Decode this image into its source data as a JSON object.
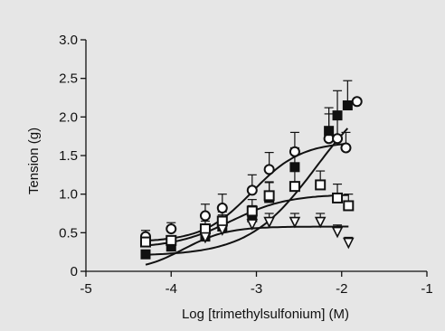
{
  "chart_data": {
    "type": "scatter",
    "title": "",
    "xlabel": "Log [trimethylsulfonium] (M)",
    "ylabel": "Tension (g)",
    "xlim": [
      -5,
      -1
    ],
    "ylim": [
      0,
      3.0
    ],
    "x_ticks": [
      "-5",
      "-4",
      "-3",
      "-2",
      "-1"
    ],
    "y_ticks": [
      "0",
      "0.5",
      "1.0",
      "1.5",
      "2.0",
      "2.5",
      "3.0"
    ],
    "grid": false,
    "legend": "none",
    "series": [
      {
        "marker": "open-circle",
        "x": [
          -4.3,
          -4.0,
          -3.6,
          -3.4,
          -3.05,
          -2.85,
          -2.55,
          -2.15,
          -2.05,
          -1.95
        ],
        "y": [
          0.45,
          0.55,
          0.72,
          0.82,
          1.05,
          1.32,
          1.55,
          1.72,
          1.72,
          1.6
        ],
        "err": [
          0.08,
          0.08,
          0.15,
          0.18,
          0.2,
          0.22,
          0.25,
          0.32,
          0.35,
          0.2
        ],
        "fit": {
          "bottom": 0.38,
          "top": 1.68,
          "logEC50": -3.05,
          "hill": 1.5
        }
      },
      {
        "marker": "filled-square",
        "x": [
          -4.3,
          -4.0,
          -3.6,
          -3.4,
          -3.05,
          -2.85,
          -2.55,
          -2.15,
          -2.05,
          -1.93
        ],
        "y": [
          0.22,
          0.32,
          0.45,
          0.58,
          0.7,
          0.95,
          1.35,
          1.82,
          2.02,
          2.15
        ],
        "err": [
          0.05,
          0.05,
          0.12,
          0.15,
          0.15,
          0.2,
          0.25,
          0.3,
          0.32,
          0.32
        ],
        "fit": {
          "bottom": 0.2,
          "top": 2.5,
          "logEC50": -2.3,
          "hill": 1.1
        }
      },
      {
        "marker": "open-circle",
        "x": [
          -1.82
        ],
        "y": [
          2.2
        ],
        "err": [
          0
        ]
      },
      {
        "marker": "open-square",
        "x": [
          -4.3,
          -4.0,
          -3.6,
          -3.4,
          -3.05,
          -2.85,
          -2.55,
          -2.25,
          -2.05,
          -1.92
        ],
        "y": [
          0.38,
          0.4,
          0.55,
          0.65,
          0.78,
          0.98,
          1.1,
          1.12,
          0.95,
          0.85
        ],
        "err": [
          0.05,
          0.05,
          0.1,
          0.12,
          0.15,
          0.18,
          0.2,
          0.18,
          0.18,
          0.15
        ],
        "fit": {
          "bottom": 0.3,
          "top": 1.0,
          "logEC50": -3.3,
          "hill": 1.3
        }
      },
      {
        "marker": "open-triangle-down",
        "x": [
          -3.6,
          -3.4,
          -3.05,
          -2.85,
          -2.55,
          -2.25,
          -2.05,
          -1.92
        ],
        "y": [
          0.45,
          0.55,
          0.62,
          0.65,
          0.65,
          0.65,
          0.52,
          0.38
        ],
        "err": [
          0.05,
          0.05,
          0.08,
          0.1,
          0.1,
          0.1,
          0.08,
          0.06
        ],
        "fit": {
          "bottom": 0.0,
          "top": 0.58,
          "logEC50": -3.85,
          "hill": 1.7,
          "xstart": -4.3
        }
      }
    ]
  }
}
